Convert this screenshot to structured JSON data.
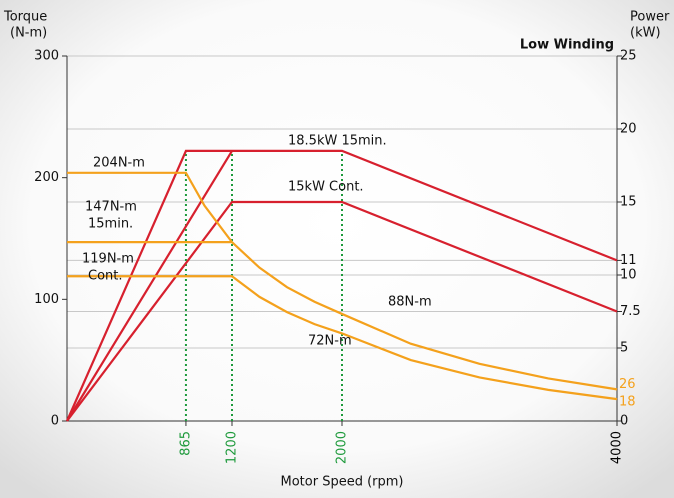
{
  "chart_data": {
    "type": "line",
    "title": "Low Winding",
    "ylabel": [
      "Torque",
      "(N-m)"
    ],
    "y2label": [
      "Power",
      "(kW)"
    ],
    "xlabel": "Motor Speed (rpm)",
    "xlim": [
      0,
      4000
    ],
    "xticks": [
      865,
      1200,
      2000,
      4000
    ],
    "xtick_colors": [
      "#1e9a3c",
      "#1e9a3c",
      "#1e9a3c",
      "#000000"
    ],
    "ylim": [
      0,
      300
    ],
    "yticks": [
      0,
      100,
      200,
      300
    ],
    "y2lim": [
      0,
      25
    ],
    "y2ticks": [
      0,
      5,
      7.5,
      10,
      11,
      15,
      20,
      25
    ],
    "grid": true,
    "series": [
      {
        "color": "#d7202e",
        "axis": "y2",
        "x": [
          0,
          865,
          2000,
          4000
        ],
        "values": [
          0,
          18.5,
          18.5,
          11
        ]
      },
      {
        "color": "#d7202e",
        "axis": "y2",
        "x": [
          0,
          1200
        ],
        "values": [
          0,
          18.5
        ]
      },
      {
        "color": "#d7202e",
        "axis": "y2",
        "x": [
          0,
          1200,
          2000,
          4000
        ],
        "values": [
          0,
          15,
          15,
          7.5
        ]
      },
      {
        "color": "#f4a11c",
        "x": [
          0,
          865,
          1000,
          1200,
          1400,
          1600,
          1800,
          2000,
          2500,
          3000,
          3500,
          4000
        ],
        "values": [
          204,
          204,
          177,
          147,
          126,
          110,
          98,
          88,
          63.5,
          47,
          35,
          26
        ]
      },
      {
        "color": "#f4a11c",
        "x": [
          0,
          1200
        ],
        "values": [
          147,
          147
        ]
      },
      {
        "color": "#f4a11c",
        "x": [
          0,
          1200,
          1400,
          1600,
          1800,
          2000,
          2500,
          3000,
          3500,
          4000
        ],
        "values": [
          119,
          119,
          102,
          89.5,
          79.6,
          72,
          50.1,
          35.8,
          25.6,
          18
        ]
      }
    ],
    "annotations": [
      "204N-m",
      "147N-m",
      "15min.",
      "119N-m",
      "Cont.",
      "18.5kW 15min.",
      "15kW Cont.",
      "88N-m",
      "72N-m"
    ]
  }
}
